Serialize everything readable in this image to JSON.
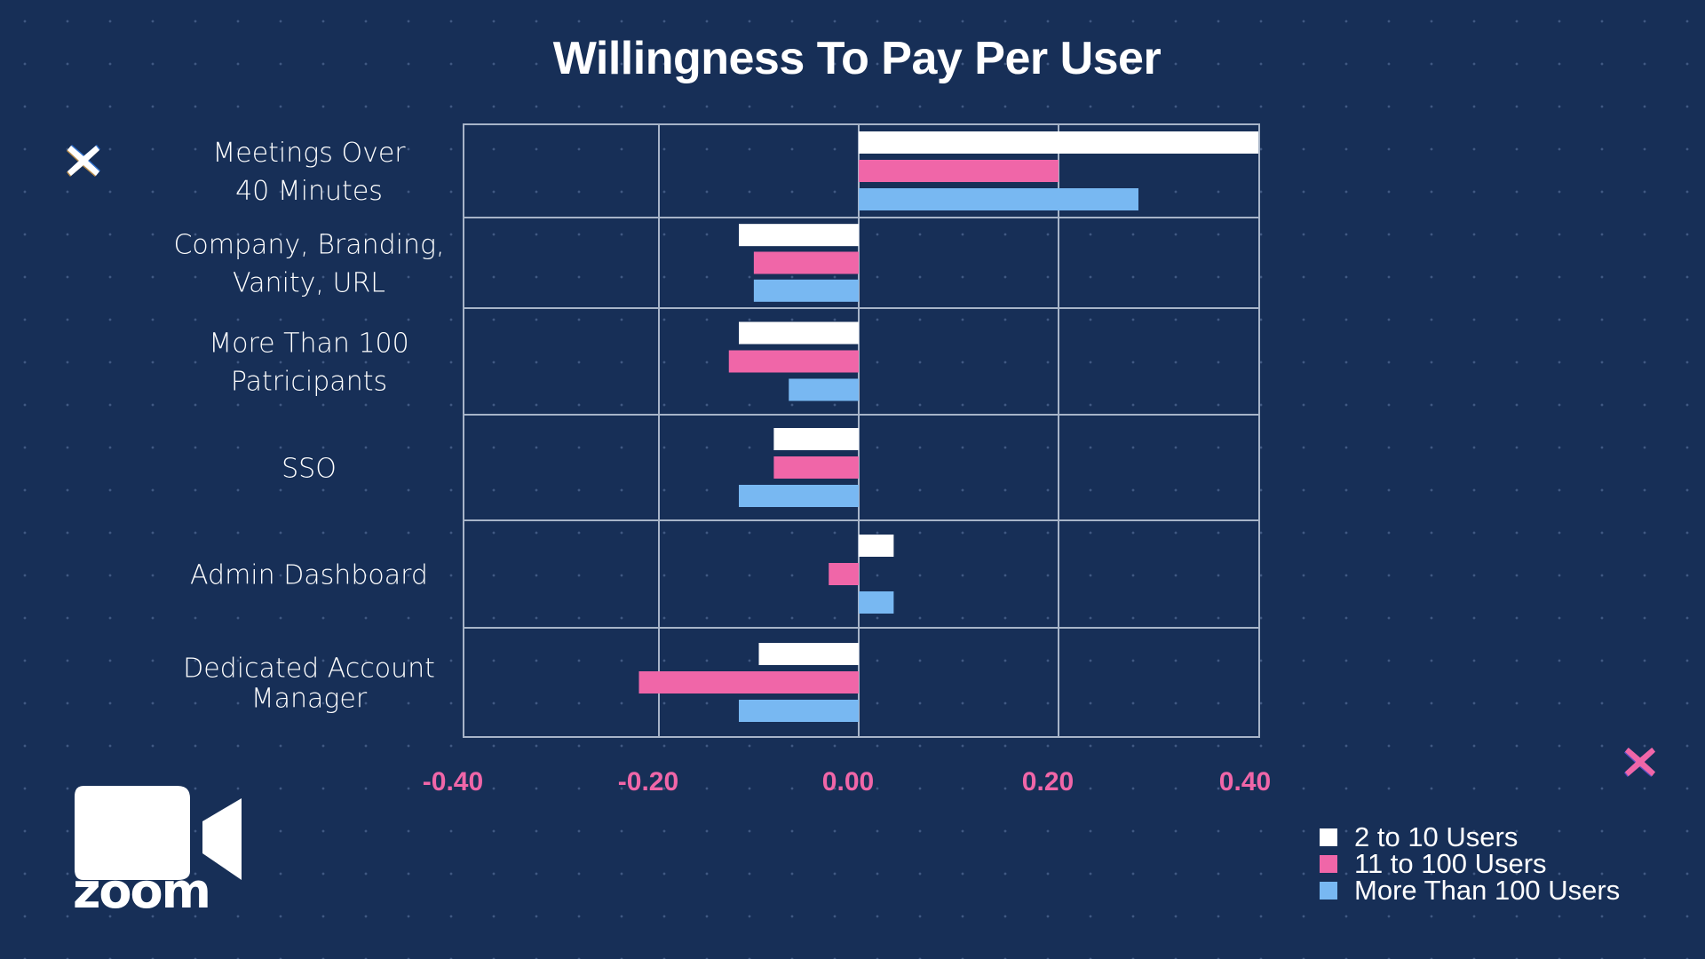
{
  "chart_data": {
    "type": "bar",
    "orientation": "horizontal",
    "title": "Willingness To Pay Per User",
    "xlabel": "",
    "ylabel": "",
    "xlim": [
      -0.4,
      0.4
    ],
    "xticks": [
      "-0.40",
      "-0.20",
      "0.00",
      "0.20",
      "0.40"
    ],
    "xtick_values": [
      -0.4,
      -0.2,
      0.0,
      0.2,
      0.4
    ],
    "grid": true,
    "legend_position": "bottom-right",
    "categories": [
      [
        "Meetings Over",
        "40 Minutes"
      ],
      [
        "Company, Branding,",
        "Vanity, URL"
      ],
      [
        "More Than 100",
        "Patricipants"
      ],
      [
        "SSO"
      ],
      [
        "Admin Dashboard"
      ],
      [
        "Dedicated Account",
        "Manager"
      ]
    ],
    "series": [
      {
        "name": "2 to 10 Users",
        "color": "#ffffff",
        "values": [
          0.4,
          -0.12,
          -0.12,
          -0.085,
          0.035,
          -0.1
        ]
      },
      {
        "name": "11 to 100 Users",
        "color": "#f066a8",
        "values": [
          0.2,
          -0.105,
          -0.13,
          -0.085,
          -0.03,
          -0.22
        ]
      },
      {
        "name": "More Than 100 Users",
        "color": "#78b8f2",
        "values": [
          0.28,
          -0.105,
          -0.07,
          -0.12,
          0.035,
          -0.12
        ]
      }
    ]
  },
  "logo": {
    "brand": "zoom",
    "icon": "video-camera-icon"
  },
  "decorations": {
    "left_x_color": "#ffffff",
    "right_x_color": "#f066a8"
  }
}
